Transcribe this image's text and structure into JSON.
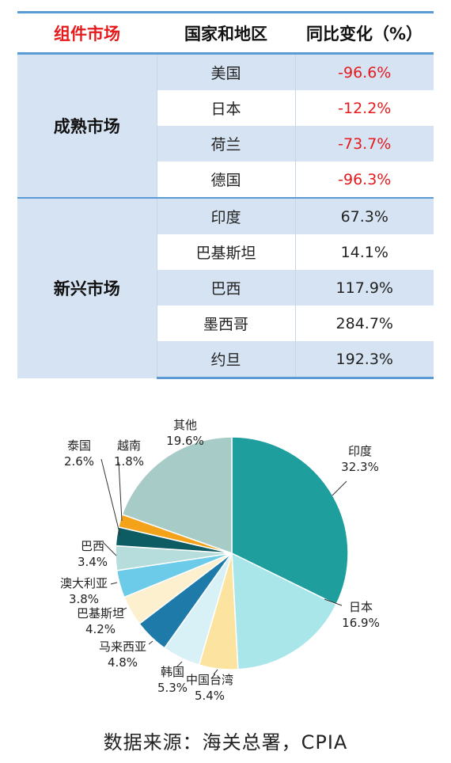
{
  "table": {
    "headers": [
      "组件市场",
      "国家和地区",
      "同比变化（%）"
    ],
    "groups": [
      {
        "name": "成熟市场",
        "rows": [
          {
            "country": "美国",
            "change": "-96.6%"
          },
          {
            "country": "日本",
            "change": "-12.2%"
          },
          {
            "country": "荷兰",
            "change": "-73.7%"
          },
          {
            "country": "德国",
            "change": "-96.3%"
          }
        ]
      },
      {
        "name": "新兴市场",
        "rows": [
          {
            "country": "印度",
            "change": "67.3%"
          },
          {
            "country": "巴基斯坦",
            "change": "14.1%"
          },
          {
            "country": "巴西",
            "change": "117.9%"
          },
          {
            "country": "墨西哥",
            "change": "284.7%"
          },
          {
            "country": "约旦",
            "change": "192.3%"
          }
        ]
      }
    ]
  },
  "chart_data": {
    "type": "pie",
    "slices": [
      {
        "name": "印度",
        "value": 32.3,
        "label": "32.3%",
        "color": "#1f9e9e"
      },
      {
        "name": "日本",
        "value": 16.9,
        "label": "16.9%",
        "color": "#a8e6ea"
      },
      {
        "name": "中国台湾",
        "value": 5.4,
        "label": "5.4%",
        "color": "#fde3a0"
      },
      {
        "name": "韩国",
        "value": 5.3,
        "label": "5.3%",
        "color": "#d8f1f7"
      },
      {
        "name": "马来西亚",
        "value": 4.8,
        "label": "4.8%",
        "color": "#1e7aa8"
      },
      {
        "name": "巴基斯坦",
        "value": 4.2,
        "label": "4.2%",
        "color": "#fcf0cf"
      },
      {
        "name": "澳大利亚",
        "value": 3.8,
        "label": "3.8%",
        "color": "#6ccbe8"
      },
      {
        "name": "巴西",
        "value": 3.4,
        "label": "3.4%",
        "color": "#b7dcdc"
      },
      {
        "name": "泰国",
        "value": 2.6,
        "label": "2.6%",
        "color": "#0d5c63"
      },
      {
        "name": "越南",
        "value": 1.8,
        "label": "1.8%",
        "color": "#f5a21b"
      },
      {
        "name": "其他",
        "value": 19.6,
        "label": "19.6%",
        "color": "#a7ccc8"
      }
    ]
  },
  "source": "数据来源：海关总署，CPIA"
}
